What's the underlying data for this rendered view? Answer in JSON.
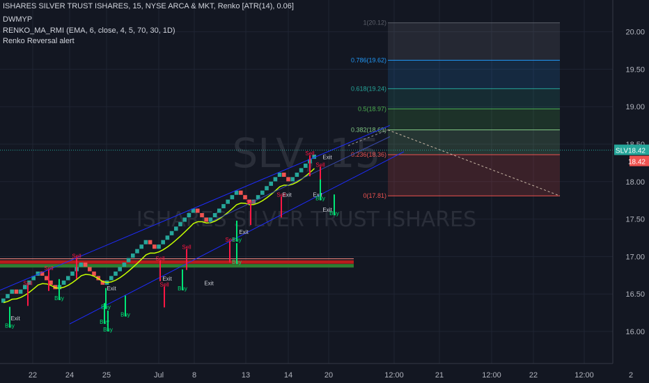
{
  "header": {
    "title": "ISHARES SILVER TRUST ISHARES, 15, NYSE ARCA & MKT, Renko [ATR(14), 0.06]",
    "indicator_1": "DWMYP",
    "indicator_2": "RENKO_MA_RMI (EMA, 6, close, 4, 5, 70, 30, 1D)",
    "indicator_3": "Renko Reversal alert"
  },
  "watermark": {
    "symbol": "SLV, 15",
    "name": "ISHARES SILVER TRUST ISHARES"
  },
  "price_tags": {
    "symbol": "SLV",
    "last": "18.42",
    "second": "18.42"
  },
  "colors": {
    "background": "#131722",
    "up_brick": "#26a69a",
    "down_brick": "#ef5350",
    "buy": "#00e676",
    "sell": "#ff1744",
    "channel": "#1e2cff",
    "support_red": "#b71c1c",
    "support_green": "#2e7d32"
  },
  "chart_data": {
    "type": "renko",
    "brick_size": 0.06,
    "ylim": [
      15.75,
      20.2
    ],
    "y_ticks": [
      "20.00",
      "19.50",
      "19.00",
      "18.50",
      "18.00",
      "17.50",
      "17.00",
      "16.50",
      "16.00"
    ],
    "x_ticks": [
      "22",
      "24",
      "25",
      "Jul",
      "8",
      "13",
      "14",
      "20",
      "12:00",
      "21",
      "12:00",
      "22",
      "12:00",
      "2"
    ],
    "fibonacci": [
      {
        "level": "1",
        "price": 20.12,
        "label": "1(20.12)"
      },
      {
        "level": "0.786",
        "price": 19.62,
        "label": "0.786(19.62)"
      },
      {
        "level": "0.618",
        "price": 19.24,
        "label": "0.618(19.24)"
      },
      {
        "level": "0.5",
        "price": 18.97,
        "label": "0.5(18.97)"
      },
      {
        "level": "0.382",
        "price": 18.69,
        "label": "0.382(18.69)"
      },
      {
        "level": "0.236",
        "price": 18.36,
        "label": "0.236(18.36)"
      },
      {
        "level": "0",
        "price": 17.81,
        "label": "0(17.81)"
      }
    ],
    "bricks": [
      {
        "dir": "up",
        "n": 3
      },
      {
        "dir": "down",
        "n": 1
      },
      {
        "dir": "up",
        "n": 5
      },
      {
        "dir": "down",
        "n": 4
      },
      {
        "dir": "up",
        "n": 6
      },
      {
        "dir": "down",
        "n": 5
      },
      {
        "dir": "up",
        "n": 10
      },
      {
        "dir": "down",
        "n": 2
      },
      {
        "dir": "up",
        "n": 9
      },
      {
        "dir": "down",
        "n": 3
      },
      {
        "dir": "up",
        "n": 7
      },
      {
        "dir": "down",
        "n": 3
      },
      {
        "dir": "up",
        "n": 7
      },
      {
        "dir": "down",
        "n": 2
      },
      {
        "dir": "up",
        "n": 6
      }
    ],
    "start_price": 16.38,
    "last_price": 18.42,
    "signals": [
      {
        "type": "Sell",
        "price": 16.62
      },
      {
        "type": "Exit",
        "price": 16.15
      },
      {
        "type": "Buy",
        "price": 16.05
      },
      {
        "type": "Sell",
        "price": 16.82
      },
      {
        "type": "Sell",
        "price": 16.98
      },
      {
        "type": "Buy",
        "price": 16.42
      },
      {
        "type": "Exit",
        "price": 16.55
      },
      {
        "type": "Buy",
        "price": 16.3
      },
      {
        "type": "Sell",
        "price": 16.95
      },
      {
        "type": "Exit",
        "price": 16.68
      },
      {
        "type": "Sell",
        "price": 16.6
      },
      {
        "type": "Buy",
        "price": 16.1
      },
      {
        "type": "Buy",
        "price": 16.0
      },
      {
        "type": "Buy",
        "price": 16.2
      },
      {
        "type": "Sell",
        "price": 17.1
      },
      {
        "type": "Exit",
        "price": 16.62
      },
      {
        "type": "Buy",
        "price": 16.55
      },
      {
        "type": "Sell",
        "price": 17.2
      },
      {
        "type": "Buy",
        "price": 16.9
      },
      {
        "type": "Sell",
        "price": 17.8
      },
      {
        "type": "Exit",
        "price": 17.8
      },
      {
        "type": "Sell",
        "price": 17.7
      },
      {
        "type": "Exit",
        "price": 17.3
      },
      {
        "type": "Buy",
        "price": 17.2
      },
      {
        "type": "Exit",
        "price": 17.6
      },
      {
        "type": "Buy",
        "price": 17.55
      },
      {
        "type": "Sell",
        "price": 18.35
      },
      {
        "type": "Exit",
        "price": 18.3
      },
      {
        "type": "Sell",
        "price": 18.2
      },
      {
        "type": "Exit",
        "price": 17.8
      },
      {
        "type": "Buy",
        "price": 17.75
      }
    ]
  }
}
